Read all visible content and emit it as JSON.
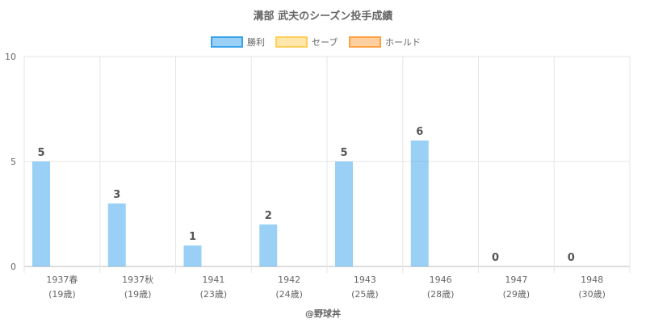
{
  "chart_data": {
    "type": "bar",
    "title": "溝部 武夫のシーズン投手成績",
    "categories": [
      [
        "1937春",
        "(19歳)"
      ],
      [
        "1937秋",
        "(19歳)"
      ],
      [
        "1941",
        "(23歳)"
      ],
      [
        "1942",
        "(24歳)"
      ],
      [
        "1943",
        "(25歳)"
      ],
      [
        "1946",
        "(28歳)"
      ],
      [
        "1947",
        "(29歳)"
      ],
      [
        "1948",
        "(30歳)"
      ]
    ],
    "series": [
      {
        "name": "勝利",
        "values": [
          5,
          3,
          1,
          2,
          5,
          6,
          0,
          0
        ],
        "color": "#36a2eb"
      },
      {
        "name": "セーブ",
        "values": [
          0,
          0,
          0,
          0,
          0,
          0,
          0,
          0
        ],
        "color": "#ffce56"
      },
      {
        "name": "ホールド",
        "values": [
          0,
          0,
          0,
          0,
          0,
          0,
          0,
          0
        ],
        "color": "#ff9f40"
      }
    ],
    "data_labels": [
      "5",
      "3",
      "1",
      "2",
      "5",
      "6",
      "0",
      "0"
    ],
    "ylim": [
      0,
      10
    ],
    "yticks": [
      0,
      5,
      10
    ],
    "grid": true,
    "legend_position": "top"
  },
  "credit": "@野球丼"
}
